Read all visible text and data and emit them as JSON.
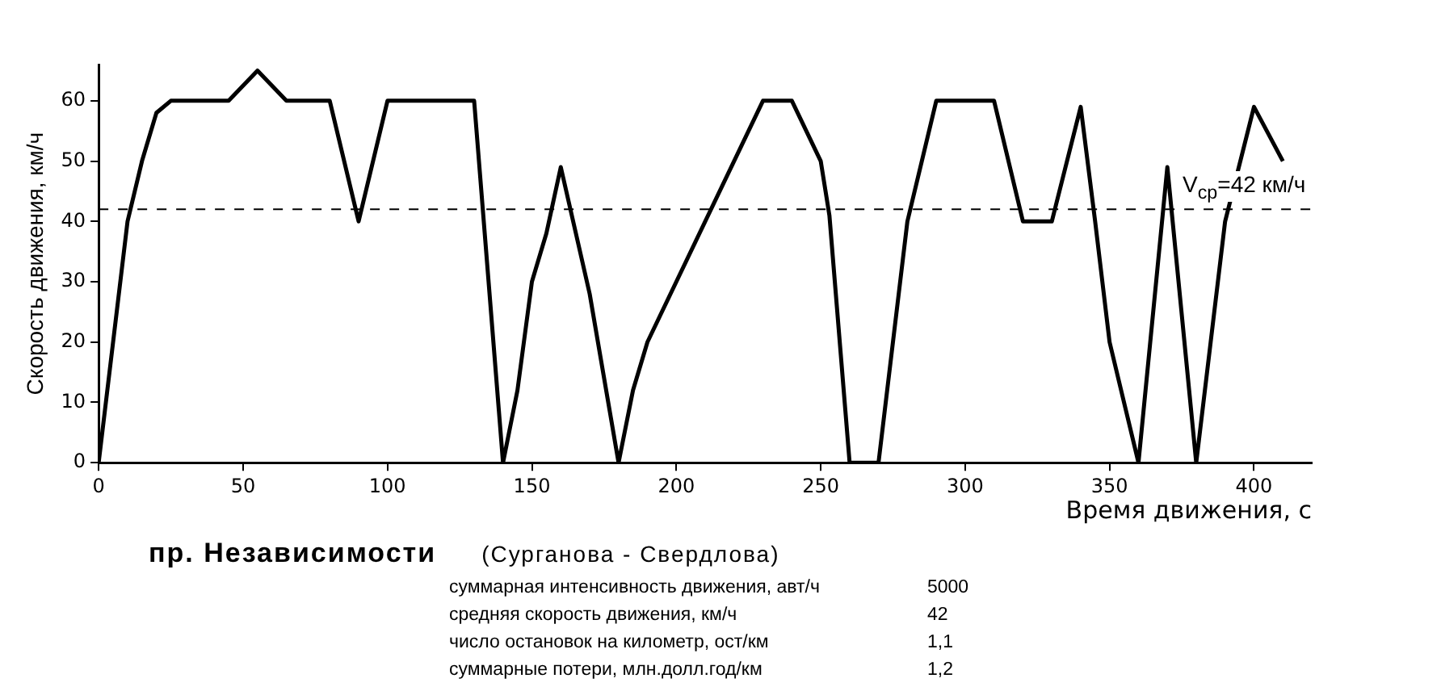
{
  "chart_data": {
    "type": "line",
    "title": "пр. Независимости",
    "subtitle": "(Сурганова - Свердлова)",
    "xlabel": "Время движения, с",
    "ylabel": "Скорость движения, км/ч",
    "x": [
      0,
      10,
      15,
      20,
      25,
      45,
      55,
      65,
      80,
      90,
      100,
      130,
      135,
      140,
      145,
      150,
      155,
      160,
      170,
      180,
      185,
      190,
      230,
      240,
      250,
      253,
      260,
      270,
      280,
      290,
      310,
      320,
      330,
      340,
      345,
      350,
      360,
      370,
      380,
      385,
      390,
      400,
      410
    ],
    "series": [
      {
        "color": "#000000",
        "values": [
          0,
          40,
          50,
          58,
          60,
          60,
          65,
          60,
          60,
          40,
          60,
          60,
          30,
          0,
          12,
          30,
          38,
          49,
          28,
          0,
          12,
          20,
          60,
          60,
          50,
          41,
          0,
          0,
          40,
          60,
          60,
          40,
          40,
          59,
          40,
          20,
          0,
          49,
          0,
          20,
          40,
          59,
          50
        ]
      }
    ],
    "xlim": [
      0,
      420
    ],
    "xticks": [
      0,
      50,
      100,
      150,
      200,
      250,
      300,
      350,
      400
    ],
    "ylim": [
      0,
      66
    ],
    "yticks": [
      0,
      10,
      20,
      30,
      40,
      50,
      60
    ],
    "ref_lines": [
      {
        "axis": "y",
        "value": 42,
        "label": "V$_{ср}$=42 км/ч",
        "color": "#000000",
        "line_style": "dashed"
      }
    ],
    "annotations": [
      "суммарная интенсивность движения, авт/ч 5000",
      "средняя скорость движения, км/ч 42",
      "число остановок на километр, ост/км 1,1",
      "суммарные потери, млн.долл.год/км 1,2"
    ],
    "grid": false,
    "legend": false,
    "marker": "none",
    "line_style": "solid"
  }
}
